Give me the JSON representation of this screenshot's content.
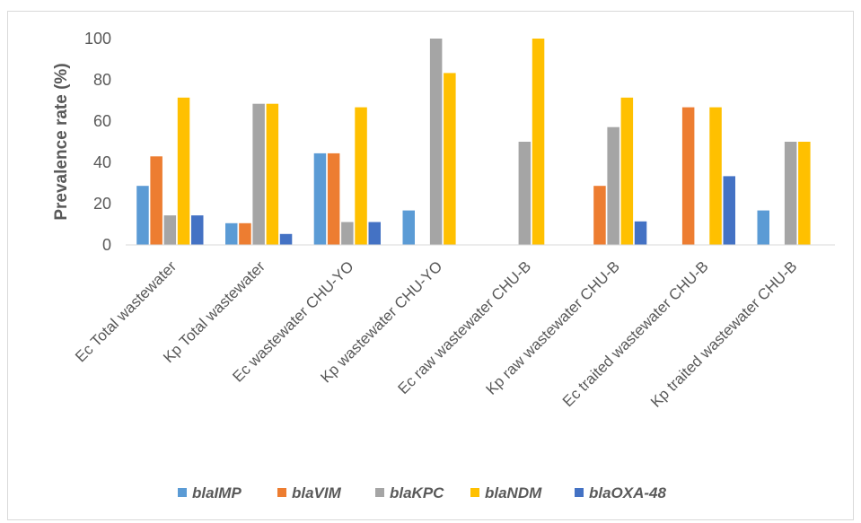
{
  "chart_data": {
    "type": "bar",
    "ylabel": "Prevalence rate (%)",
    "xlabel": "",
    "ylim": [
      0,
      100
    ],
    "yticks": [
      "0",
      "20",
      "40",
      "60",
      "80",
      "100"
    ],
    "grid": false,
    "legend_position": "bottom",
    "categories": [
      "Ec Total wastewater",
      "Kp Total wastewater",
      "Ec wastewater CHU-YO",
      "Kp wastewater CHU-YO",
      "Ec raw wastewater CHU-B",
      "Kp raw wastewater CHU-B",
      "Ec traited wastewater CHU-B",
      "Kp traited wastewater CHU-B"
    ],
    "series": [
      {
        "name": "blaIMP",
        "color": "#5b9bd5",
        "values": [
          28.6,
          10.5,
          44.4,
          16.7,
          0,
          0,
          0,
          16.7
        ]
      },
      {
        "name": "blaVIM",
        "color": "#ed7d31",
        "values": [
          42.9,
          10.5,
          44.4,
          0,
          0,
          28.6,
          66.7,
          0
        ]
      },
      {
        "name": "blaKPC",
        "color": "#a5a5a5",
        "values": [
          14.3,
          68.4,
          11.1,
          100,
          50,
          57.1,
          0,
          50
        ]
      },
      {
        "name": "blaNDM",
        "color": "#ffc000",
        "values": [
          71.4,
          68.4,
          66.7,
          83.3,
          100,
          71.4,
          66.7,
          50
        ]
      },
      {
        "name": "blaOXA-48",
        "color": "#4472c4",
        "values": [
          14.3,
          5.3,
          11.1,
          0,
          0,
          11.4,
          33.3,
          0
        ]
      }
    ]
  }
}
